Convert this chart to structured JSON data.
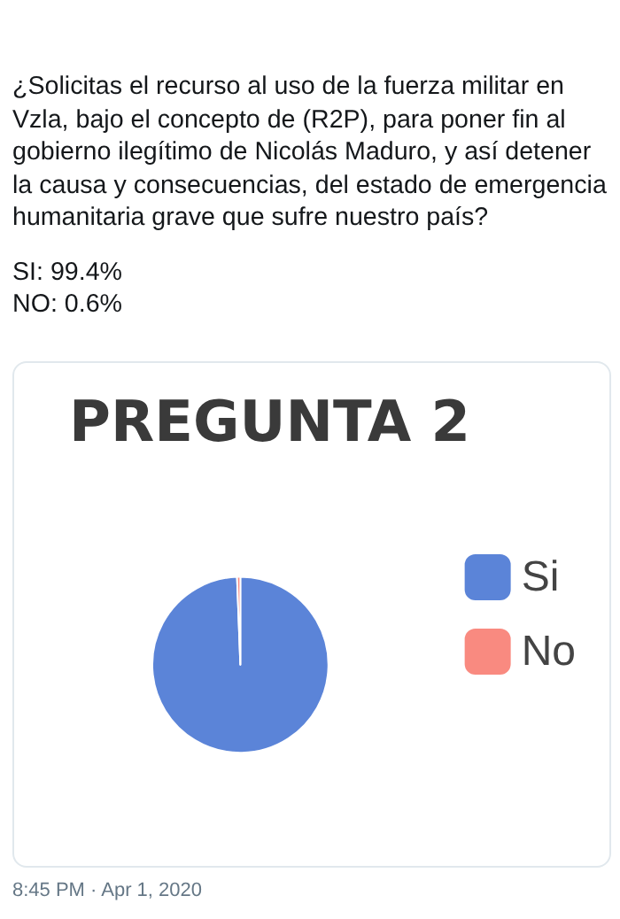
{
  "chart_data": {
    "type": "pie",
    "title": "PREGUNTA 2",
    "categories": [
      "Si",
      "No"
    ],
    "values": [
      99.4,
      0.6
    ],
    "colors": [
      "#5b84d8",
      "#f98a80"
    ],
    "legend": "right",
    "annotations": [
      "¿Solicitas el recurso al uso de la fuerza militar en Vzla, bajo el concepto de (R2P), para poner fin al gobierno ilegítimo de Nicolás Maduro, y así detener la causa y consecuencias, del estado de emergencia humanitaria grave que sufre nuestro país?",
      "SI: 99.4%",
      "NO: 0.6%",
      "8:45 PM · Apr 1, 2020"
    ]
  }
}
